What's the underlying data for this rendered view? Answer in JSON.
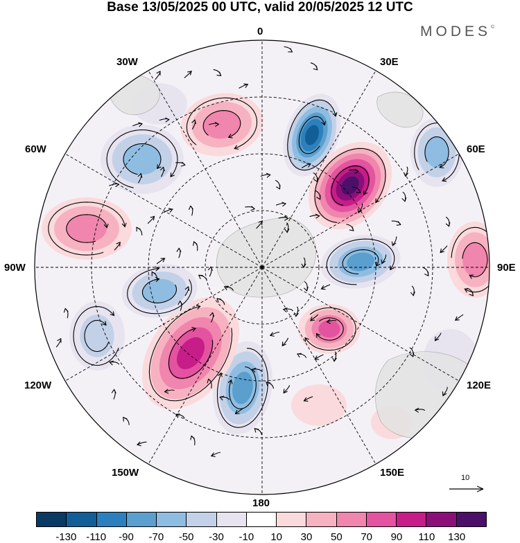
{
  "title": "Base 13/05/2025 00 UTC, valid 20/05/2025 12 UTC",
  "brand": "MODES",
  "brand_mark": "©",
  "longitude_labels": {
    "top": "0",
    "top_right": "30E",
    "right_upper": "60E",
    "right": "90E",
    "right_lower": "120E",
    "bottom_right": "150E",
    "bottom": "180",
    "bottom_left": "150W",
    "left_lower": "120W",
    "left": "90W",
    "left_upper": "60W",
    "top_left": "30W"
  },
  "reference_vector_label": "10",
  "colorbar": {
    "colors": [
      "#0a3a63",
      "#115f96",
      "#2d80bd",
      "#5a9fce",
      "#8fbde1",
      "#c3d1e8",
      "#e7e4f0",
      "#ffffff",
      "#fadadc",
      "#f6b2c0",
      "#f085ad",
      "#e453a0",
      "#c71d88",
      "#8c0f79",
      "#4c0f6a"
    ],
    "tick_labels": [
      "-130",
      "-110",
      "-90",
      "-70",
      "-50",
      "-30",
      "-10",
      "10",
      "30",
      "50",
      "70",
      "90",
      "110",
      "130"
    ]
  }
}
